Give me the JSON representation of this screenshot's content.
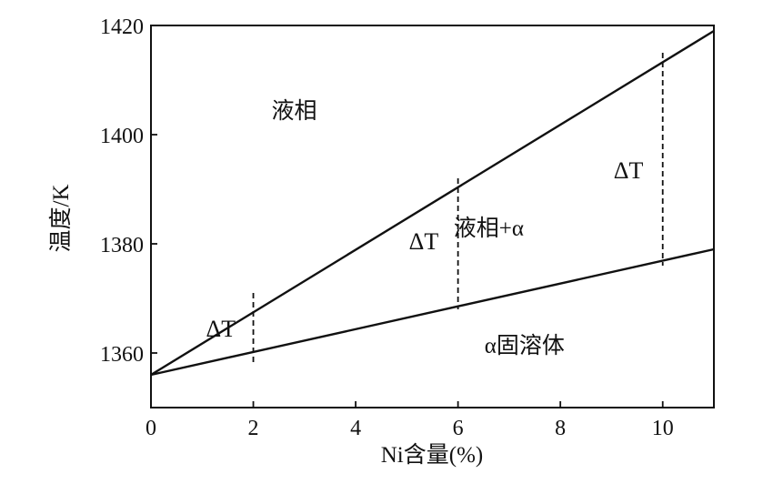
{
  "chart_data": {
    "type": "line",
    "title": "",
    "xlabel": "Ni含量(%)",
    "ylabel": "温度/K",
    "xlim": [
      0,
      11
    ],
    "ylim": [
      1350,
      1420
    ],
    "x_ticks": [
      "0",
      "2",
      "4",
      "6",
      "8",
      "10"
    ],
    "y_ticks": [
      "1360",
      "1380",
      "1400",
      "1420"
    ],
    "grid": false,
    "series": [
      {
        "x": [
          0,
          11
        ],
        "y": [
          1356,
          1419
        ]
      },
      {
        "x": [
          0,
          11
        ],
        "y": [
          1356,
          1379
        ]
      }
    ],
    "delta_markers": [
      {
        "x": 2,
        "y_top": 1371,
        "y_bottom": 1358,
        "label": "ΔT"
      },
      {
        "x": 6,
        "y_top": 1392,
        "y_bottom": 1368,
        "label": "ΔT"
      },
      {
        "x": 10,
        "y_top": 1415,
        "y_bottom": 1376,
        "label": "ΔT"
      }
    ],
    "regions": [
      {
        "label": "液相",
        "x": 2.8,
        "y": 1403
      },
      {
        "label": "液相+α",
        "x": 6.6,
        "y": 1381.5
      },
      {
        "label": "α固溶体",
        "x": 7.3,
        "y": 1360
      }
    ]
  }
}
